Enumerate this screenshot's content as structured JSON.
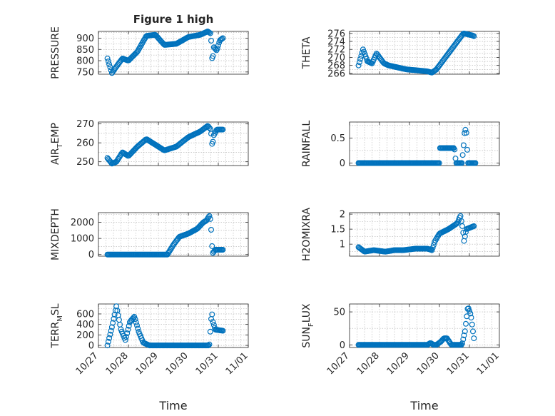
{
  "figure_title": "Figure 1 high",
  "x_axis_label": "Time",
  "x_tick_labels": [
    "10/27",
    "10/28",
    "10/29",
    "10/30",
    "10/31",
    "11/01"
  ],
  "marker_color": "#0072bd",
  "chart_data": [
    {
      "id": "pressure",
      "type": "scatter",
      "title": "Figure 1 high",
      "ylabel_main": "PRESSURE",
      "ylabel_sub": "",
      "xlabel": "Time",
      "xlim": [
        "10/27",
        "11/01"
      ],
      "ylim": [
        740,
        930
      ],
      "yticks": [
        750,
        800,
        850,
        900
      ],
      "ytick_labels": [
        "750",
        "800",
        "850",
        "900"
      ],
      "grid": "on",
      "legend": "none",
      "keypoints_x_days": [
        0.3,
        0.45,
        0.55,
        0.8,
        1.0,
        1.3,
        1.6,
        1.9,
        2.2,
        2.6,
        3.0,
        3.4,
        3.65,
        3.75,
        3.8,
        3.85,
        3.95,
        4.05,
        4.15
      ],
      "keypoints_y": [
        810,
        745,
        765,
        810,
        800,
        840,
        910,
        915,
        870,
        875,
        905,
        915,
        930,
        920,
        790,
        860,
        845,
        890,
        900
      ]
    },
    {
      "id": "theta",
      "type": "scatter",
      "title": "",
      "ylabel_main": "THETA",
      "ylabel_sub": "",
      "xlabel": "Time",
      "xlim": [
        "10/27",
        "11/01"
      ],
      "ylim": [
        265.8,
        276.5
      ],
      "yticks": [
        266,
        268,
        270,
        272,
        274,
        276
      ],
      "ytick_labels": [
        "266",
        "268",
        "270",
        "272",
        "274",
        "276"
      ],
      "grid": "on",
      "legend": "none",
      "keypoints_x_days": [
        0.3,
        0.45,
        0.6,
        0.75,
        0.9,
        1.0,
        1.15,
        1.3,
        1.6,
        1.9,
        2.2,
        2.6,
        2.75,
        2.9,
        3.1,
        3.4,
        3.7,
        3.8,
        4.1,
        4.15
      ],
      "keypoints_y": [
        268,
        272,
        269,
        268.5,
        271,
        270,
        268.5,
        268,
        267.5,
        267,
        266.8,
        266.5,
        266.2,
        267,
        269,
        272,
        275,
        276,
        275.5,
        275.3
      ]
    },
    {
      "id": "air_temp",
      "type": "scatter",
      "title": "",
      "ylabel_main": "AIR",
      "ylabel_sub": "T",
      "ylabel_tail": "EMP",
      "xlabel": "Time",
      "xlim": [
        "10/27",
        "11/01"
      ],
      "ylim": [
        248,
        271
      ],
      "yticks": [
        250,
        260,
        270
      ],
      "ytick_labels": [
        "250",
        "260",
        "270"
      ],
      "grid": "on",
      "legend": "none",
      "keypoints_x_days": [
        0.3,
        0.45,
        0.6,
        0.8,
        1.0,
        1.3,
        1.6,
        1.9,
        2.2,
        2.6,
        3.0,
        3.4,
        3.65,
        3.75,
        3.8,
        3.85,
        3.95,
        4.15
      ],
      "keypoints_y": [
        252,
        249,
        250,
        255,
        253,
        258,
        262,
        259,
        256,
        258,
        263,
        266,
        269,
        267,
        258,
        264,
        267,
        267
      ]
    },
    {
      "id": "rainfall",
      "type": "scatter",
      "title": "",
      "ylabel_main": "RAINFALL",
      "ylabel_sub": "",
      "xlabel": "Time",
      "xlim": [
        "10/27",
        "11/01"
      ],
      "ylim": [
        -0.05,
        0.82
      ],
      "yticks": [
        0,
        0.5
      ],
      "ytick_labels": [
        "0",
        "0.5"
      ],
      "grid": "on",
      "legend": "none",
      "keypoints_x_days": [
        0.3,
        3.0,
        3.02,
        3.5,
        3.55,
        3.75,
        3.8,
        3.85,
        3.9,
        3.95,
        4.2
      ],
      "keypoints_y": [
        0,
        0,
        0.3,
        0.3,
        0,
        0,
        0.3,
        0.7,
        0.6,
        0,
        0
      ]
    },
    {
      "id": "mixdepth",
      "type": "scatter",
      "title": "",
      "ylabel_main": "MIXDEPTH",
      "ylabel_sub": "",
      "xlabel": "Time",
      "xlim": [
        "10/27",
        "11/01"
      ],
      "ylim": [
        -100,
        2600
      ],
      "yticks": [
        0,
        1000,
        2000
      ],
      "ytick_labels": [
        "0",
        "1000",
        "2000"
      ],
      "grid": "on",
      "legend": "none",
      "keypoints_x_days": [
        0.3,
        2.3,
        2.5,
        2.7,
        3.0,
        3.3,
        3.5,
        3.6,
        3.7,
        3.75,
        3.78,
        3.82,
        3.9,
        4.15
      ],
      "keypoints_y": [
        0,
        0,
        600,
        1100,
        1300,
        1600,
        2000,
        2100,
        2400,
        2100,
        700,
        100,
        300,
        300
      ]
    },
    {
      "id": "h2omixra",
      "type": "scatter",
      "title": "",
      "ylabel_main": "H2OMIXRA",
      "ylabel_sub": "",
      "xlabel": "Time",
      "xlim": [
        "10/27",
        "11/01"
      ],
      "ylim": [
        0.6,
        2.05
      ],
      "yticks": [
        1,
        1.5,
        2
      ],
      "ytick_labels": [
        "1",
        "1.5",
        "2"
      ],
      "grid": "on",
      "legend": "none",
      "keypoints_x_days": [
        0.3,
        0.5,
        0.8,
        1.2,
        1.5,
        1.8,
        2.2,
        2.6,
        2.75,
        2.85,
        3.0,
        3.3,
        3.6,
        3.7,
        3.78,
        3.82,
        3.9,
        4.15
      ],
      "keypoints_y": [
        0.9,
        0.75,
        0.8,
        0.75,
        0.8,
        0.8,
        0.85,
        0.85,
        0.8,
        1.1,
        1.35,
        1.5,
        1.7,
        1.95,
        1.5,
        1.1,
        1.5,
        1.6
      ]
    },
    {
      "id": "terr_msl",
      "type": "scatter",
      "title": "",
      "ylabel_main": "TERR",
      "ylabel_sub": "M",
      "ylabel_tail": "SL",
      "xlabel": "Time",
      "xlim": [
        "10/27",
        "11/01"
      ],
      "ylim": [
        -40,
        790
      ],
      "yticks": [
        0,
        200,
        400,
        600
      ],
      "ytick_labels": [
        "0",
        "200",
        "400",
        "600"
      ],
      "grid": "on",
      "legend": "none",
      "keypoints_x_days": [
        0.3,
        0.45,
        0.6,
        0.75,
        0.9,
        1.05,
        1.2,
        1.35,
        1.5,
        1.7,
        2.0,
        3.7,
        3.78,
        3.82,
        3.9,
        4.15
      ],
      "keypoints_y": [
        0,
        350,
        750,
        300,
        100,
        450,
        550,
        250,
        50,
        0,
        0,
        0,
        650,
        450,
        300,
        280
      ]
    },
    {
      "id": "sun_flux",
      "type": "scatter",
      "title": "",
      "ylabel_main": "SUN",
      "ylabel_sub": "F",
      "ylabel_tail": "LUX",
      "xlabel": "Time",
      "xlim": [
        "10/27",
        "11/01"
      ],
      "ylim": [
        -4,
        62
      ],
      "yticks": [
        0,
        50
      ],
      "ytick_labels": [
        "0",
        "50"
      ],
      "grid": "on",
      "legend": "none",
      "keypoints_x_days": [
        0.3,
        2.6,
        2.7,
        2.8,
        2.9,
        3.05,
        3.15,
        3.25,
        3.4,
        3.6,
        3.75,
        3.85,
        3.95,
        4.05,
        4.15
      ],
      "keypoints_y": [
        0,
        0,
        3,
        0,
        0,
        5,
        10,
        10,
        0,
        0,
        0,
        20,
        58,
        45,
        10
      ]
    }
  ]
}
